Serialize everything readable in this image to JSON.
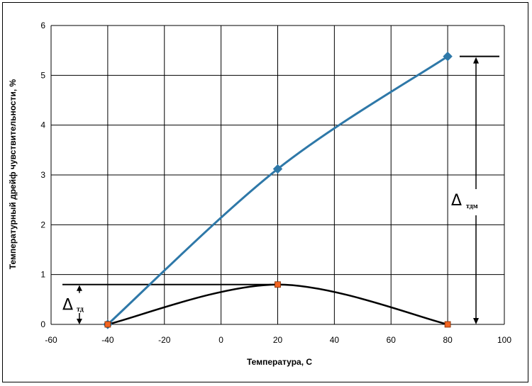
{
  "chart_data": {
    "type": "line",
    "title": "",
    "xlabel": "Температура, С",
    "ylabel": "Температурный дрейф чувствительности, %",
    "xlim": [
      -60,
      100
    ],
    "ylim": [
      0,
      6
    ],
    "x_ticks": [
      "-60",
      "-40",
      "-20",
      "0",
      "20",
      "40",
      "60",
      "80",
      "100"
    ],
    "y_ticks": [
      "0",
      "1",
      "2",
      "3",
      "4",
      "5",
      "6"
    ],
    "grid": true,
    "legend": "none",
    "series": [
      {
        "color": "#2E78A8",
        "marker": "diamond",
        "marker_color": "#2E78A8",
        "smooth": true,
        "points": [
          [
            -40,
            0
          ],
          [
            20,
            3.12
          ],
          [
            80,
            5.38
          ]
        ]
      },
      {
        "color": "#000000",
        "marker": "square",
        "marker_color": "#F26522",
        "smooth": true,
        "points": [
          [
            -40,
            0
          ],
          [
            20,
            0.8
          ],
          [
            80,
            0
          ]
        ]
      }
    ],
    "annotations": [
      {
        "symbol": "Δ",
        "subscript": "тд",
        "from": 0,
        "to": 0.8
      },
      {
        "symbol": "Δ",
        "subscript": "тдм",
        "from": 0,
        "to": 5.38
      }
    ]
  }
}
